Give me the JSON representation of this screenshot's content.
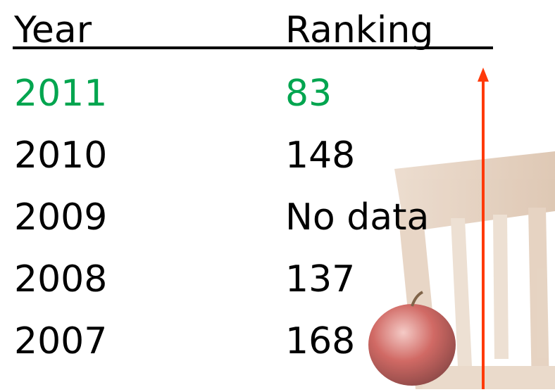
{
  "table": {
    "header": [
      "Year",
      "Ranking"
    ],
    "rows": [
      [
        "2011",
        "83"
      ],
      [
        "2010",
        "148"
      ],
      [
        "2009",
        "No data"
      ],
      [
        "2008",
        "137"
      ],
      [
        "2007",
        "168"
      ]
    ]
  }
}
